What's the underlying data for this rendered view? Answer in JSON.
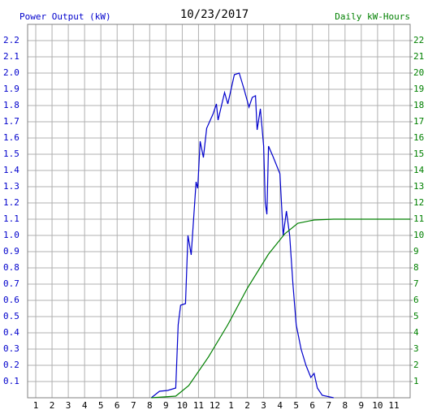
{
  "chart_data": {
    "type": "line",
    "title": "10/23/2017",
    "y_label": "Power Output (kW)",
    "y2_label": "Daily kW-Hours",
    "xlim": [
      0.5,
      24
    ],
    "xticks": [
      1,
      2,
      3,
      4,
      5,
      6,
      7,
      8,
      9,
      10,
      11,
      12,
      {
        "value": 13,
        "label": "1"
      },
      {
        "value": 14,
        "label": "2"
      },
      {
        "value": 15,
        "label": "3"
      },
      {
        "value": 16,
        "label": "4"
      },
      {
        "value": 17,
        "label": "5"
      },
      {
        "value": 18,
        "label": "6"
      },
      {
        "value": 19,
        "label": "7"
      },
      {
        "value": 20,
        "label": "8"
      },
      {
        "value": 21,
        "label": "9"
      },
      {
        "value": 22,
        "label": "10"
      },
      {
        "value": 23,
        "label": "11"
      }
    ],
    "ylim": [
      0,
      2.3
    ],
    "yticks": [
      0.1,
      0.2,
      0.3,
      0.4,
      0.5,
      0.6,
      0.7,
      0.8,
      0.9,
      {
        "value": 1,
        "label": "1.0"
      },
      1.1,
      1.2,
      1.3,
      1.4,
      1.5,
      1.6,
      1.7,
      1.8,
      1.9,
      {
        "value": 2,
        "label": "2.0"
      },
      2.1,
      2.2
    ],
    "y2lim": [
      0,
      23
    ],
    "y2ticks": [
      1,
      2,
      3,
      4,
      5,
      6,
      7,
      8,
      9,
      10,
      11,
      12,
      13,
      14,
      15,
      16,
      17,
      18,
      19,
      20,
      21,
      22
    ],
    "grid": true,
    "y_color": "#0000cc",
    "y2_color": "#008000",
    "series": [
      {
        "name": "Power Output (kW)",
        "color": "#0000cc",
        "axis": "y",
        "x": [
          8.1,
          8.6,
          9.1,
          9.6,
          9.75,
          9.9,
          10.2,
          10.35,
          10.55,
          10.85,
          10.95,
          11.1,
          11.3,
          11.5,
          11.9,
          12.1,
          12.2,
          12.6,
          12.8,
          13.2,
          13.5,
          13.8,
          14.1,
          14.3,
          14.5,
          14.6,
          14.8,
          15.0,
          15.1,
          15.2,
          15.3,
          15.6,
          16.0,
          16.2,
          16.4,
          16.6,
          16.8,
          17.0,
          17.3,
          17.6,
          17.9,
          18.1,
          18.3,
          18.6,
          19.3
        ],
        "values": [
          0,
          0.04,
          0.045,
          0.06,
          0.45,
          0.57,
          0.58,
          1.0,
          0.88,
          1.33,
          1.29,
          1.58,
          1.48,
          1.66,
          1.75,
          1.81,
          1.71,
          1.88,
          1.81,
          1.99,
          2.0,
          1.9,
          1.79,
          1.85,
          1.86,
          1.65,
          1.78,
          1.55,
          1.2,
          1.13,
          1.55,
          1.48,
          1.38,
          1.0,
          1.15,
          1.0,
          0.7,
          0.45,
          0.3,
          0.2,
          0.125,
          0.15,
          0.06,
          0.015,
          0
        ]
      },
      {
        "name": "Daily kW-Hours",
        "color": "#008000",
        "axis": "y2",
        "x": [
          8.1,
          9.6,
          10.4,
          11.6,
          12.8,
          14.0,
          15.3,
          16.3,
          17.1,
          18.1,
          19.3,
          24
        ],
        "values": [
          0,
          0.1,
          0.75,
          2.5,
          4.5,
          6.75,
          8.85,
          10.1,
          10.75,
          10.95,
          11.0,
          11.0
        ]
      }
    ]
  }
}
